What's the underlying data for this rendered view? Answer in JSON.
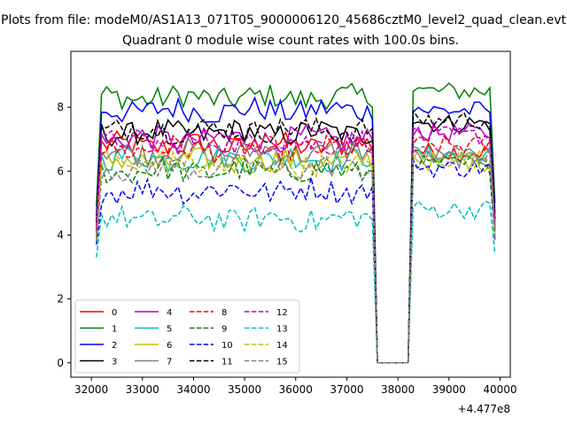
{
  "figure": {
    "suptitle": "Plots from file: modeM0/AS1A13_071T05_9000006120_45686cztM0_level2_quad_clean.evt"
  },
  "chart_data": {
    "type": "line",
    "title": "Quadrant 0 module wise count rates with 100.0s bins.",
    "xlabel": "",
    "ylabel": "",
    "x_offset_label": "+4.477e8",
    "xlim": [
      31600,
      40200
    ],
    "ylim": [
      -0.45,
      9.75
    ],
    "xticks": [
      32000,
      33000,
      34000,
      35000,
      36000,
      37000,
      38000,
      39000,
      40000
    ],
    "yticks": [
      0,
      2,
      4,
      6,
      8
    ],
    "grid": false,
    "legend_placement": "lower-left",
    "x_start": 32100,
    "x_step": 100,
    "gap": {
      "from": 37700,
      "to": 38200
    },
    "series": [
      {
        "name": "0",
        "color": "#ff0000",
        "dash": "solid",
        "level": 6.8,
        "end_level": 6.6,
        "edge": 4.2
      },
      {
        "name": "1",
        "color": "#008000",
        "dash": "solid",
        "level": 8.3,
        "end_level": 8.5,
        "edge": 4.9
      },
      {
        "name": "2",
        "color": "#0000ff",
        "dash": "solid",
        "level": 7.9,
        "end_level": 7.9,
        "edge": 4.6
      },
      {
        "name": "3",
        "color": "#000000",
        "dash": "solid",
        "level": 7.2,
        "end_level": 7.5,
        "edge": 4.4
      },
      {
        "name": "4",
        "color": "#bf00bf",
        "dash": "solid",
        "level": 7.0,
        "end_level": 7.2,
        "edge": 4.3
      },
      {
        "name": "5",
        "color": "#00bfbf",
        "dash": "solid",
        "level": 6.4,
        "end_level": 6.5,
        "edge": 4.0
      },
      {
        "name": "6",
        "color": "#bfbf00",
        "dash": "solid",
        "level": 6.3,
        "end_level": 6.3,
        "edge": 3.9
      },
      {
        "name": "7",
        "color": "#808080",
        "dash": "solid",
        "level": 6.6,
        "end_level": 6.4,
        "edge": 4.0
      },
      {
        "name": "8",
        "color": "#ff0000",
        "dash": "dashed",
        "level": 6.7,
        "end_level": 6.8,
        "edge": 4.1
      },
      {
        "name": "9",
        "color": "#008000",
        "dash": "dashed",
        "level": 6.0,
        "end_level": 6.2,
        "edge": 3.8
      },
      {
        "name": "10",
        "color": "#0000ff",
        "dash": "dashed",
        "level": 5.4,
        "end_level": 6.1,
        "edge": 3.7
      },
      {
        "name": "11",
        "color": "#000000",
        "dash": "dashed",
        "level": 7.3,
        "end_level": 7.6,
        "edge": 4.4
      },
      {
        "name": "12",
        "color": "#bf00bf",
        "dash": "dashed",
        "level": 6.9,
        "end_level": 7.1,
        "edge": 4.2
      },
      {
        "name": "13",
        "color": "#00bfbf",
        "dash": "dashed",
        "level": 4.5,
        "end_level": 4.8,
        "edge": 3.3
      },
      {
        "name": "14",
        "color": "#bfbf00",
        "dash": "dashed",
        "level": 6.2,
        "end_level": 6.4,
        "edge": 3.8
      },
      {
        "name": "15",
        "color": "#808080",
        "dash": "dashed",
        "level": 6.1,
        "end_level": 6.5,
        "edge": 3.8
      }
    ]
  }
}
